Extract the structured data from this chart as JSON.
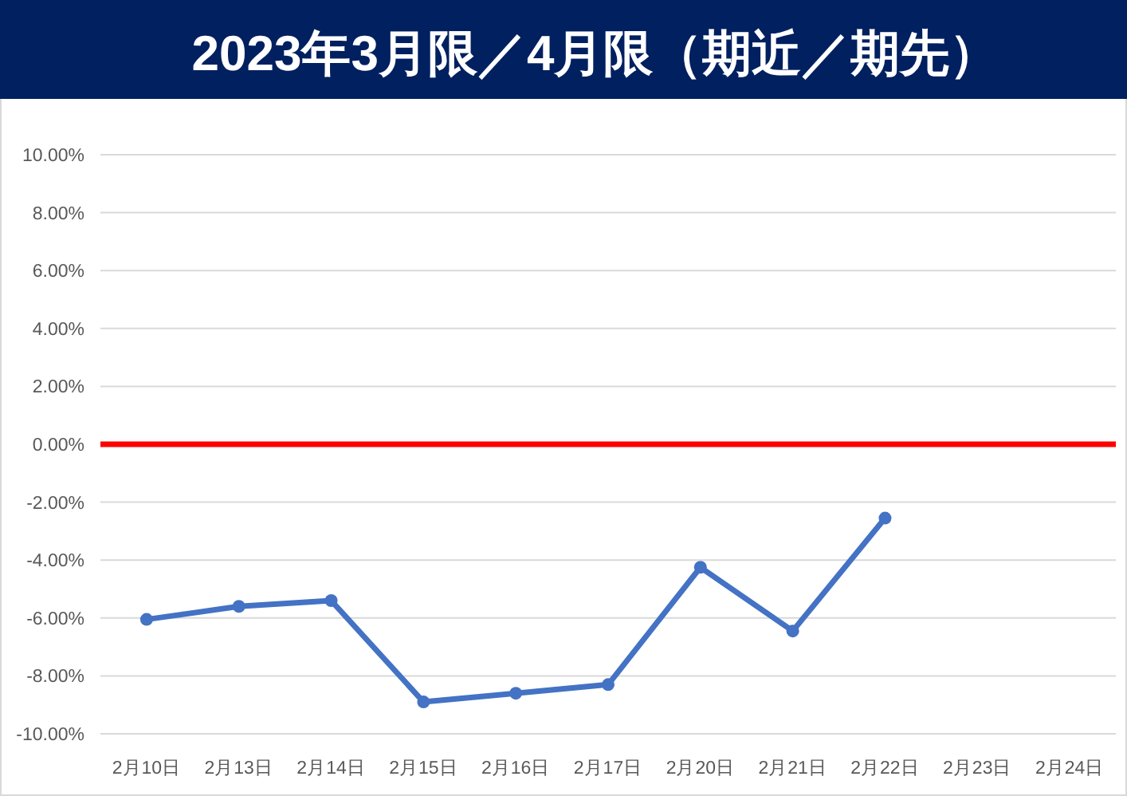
{
  "chart_data": {
    "type": "line",
    "title": "2023年3月限／4月限（期近／期先）",
    "categories": [
      "2月10日",
      "2月13日",
      "2月14日",
      "2月15日",
      "2月16日",
      "2月17日",
      "2月20日",
      "2月21日",
      "2月22日",
      "2月23日",
      "2月24日"
    ],
    "series": [
      {
        "color": "#4472c4",
        "values": [
          -6.05,
          -5.6,
          -5.4,
          -8.9,
          -8.6,
          -8.3,
          -4.25,
          -6.45,
          -2.55,
          null,
          null
        ]
      }
    ],
    "ylim": [
      -10,
      10
    ],
    "yticks": [
      {
        "value": -10,
        "label": "-10.00%"
      },
      {
        "value": -8,
        "label": "-8.00%"
      },
      {
        "value": -6,
        "label": "-6.00%"
      },
      {
        "value": -4,
        "label": "-4.00%"
      },
      {
        "value": -2,
        "label": "-2.00%"
      },
      {
        "value": 0,
        "label": "0.00%"
      },
      {
        "value": 2,
        "label": "2.00%"
      },
      {
        "value": 4,
        "label": "4.00%"
      },
      {
        "value": 6,
        "label": "6.00%"
      },
      {
        "value": 8,
        "label": "8.00%"
      },
      {
        "value": 10,
        "label": "10.00%"
      }
    ],
    "grid": "y",
    "marker": "circle",
    "line_style": "solid",
    "ref_lines": [
      {
        "axis": "y",
        "value": 0,
        "color": "#ff0000"
      }
    ]
  }
}
